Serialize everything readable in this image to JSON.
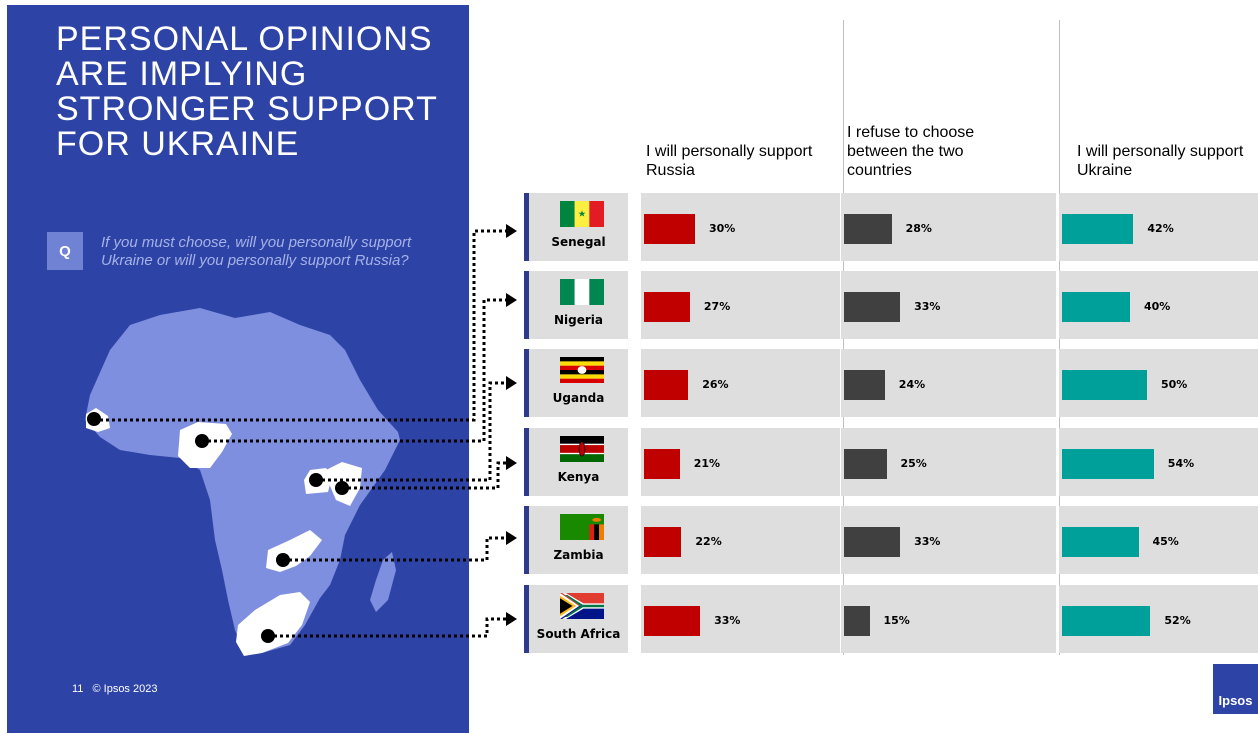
{
  "title": "PERSONAL OPINIONS ARE IMPLYING STRONGER SUPPORT FOR UKRAINE",
  "question": {
    "badge": "Q",
    "text": "If you must choose, will you personally support Ukraine or will you personally support Russia?"
  },
  "footer": {
    "page_number": "11",
    "copyright": "© Ipsos 2023"
  },
  "logo": "Ipsos",
  "colors": {
    "russia": "#c00000",
    "refuse": "#404040",
    "ukraine": "#00a09a",
    "panel": "#2e43a6",
    "map": "#7f8fdf"
  },
  "chart_data": {
    "type": "bar",
    "categories": [
      "Senegal",
      "Nigeria",
      "Uganda",
      "Kenya",
      "Zambia",
      "South Africa"
    ],
    "series": [
      {
        "name": "I will personally support Russia",
        "values": [
          30,
          27,
          26,
          21,
          22,
          33
        ],
        "labels": [
          "30%",
          "27%",
          "26%",
          "21%",
          "22%",
          "33%"
        ]
      },
      {
        "name": "I refuse to choose between the two countries",
        "values": [
          28,
          33,
          24,
          25,
          33,
          15
        ],
        "labels": [
          "28%",
          "33%",
          "24%",
          "25%",
          "33%",
          "15%"
        ]
      },
      {
        "name": "I will personally support Ukraine",
        "values": [
          42,
          40,
          50,
          54,
          45,
          52
        ],
        "labels": [
          "42%",
          "40%",
          "50%",
          "54%",
          "45%",
          "52%"
        ]
      }
    ],
    "unit": "%",
    "flags": [
      "senegal-flag",
      "nigeria-flag",
      "uganda-flag",
      "kenya-flag",
      "zambia-flag",
      "south-africa-flag"
    ]
  }
}
